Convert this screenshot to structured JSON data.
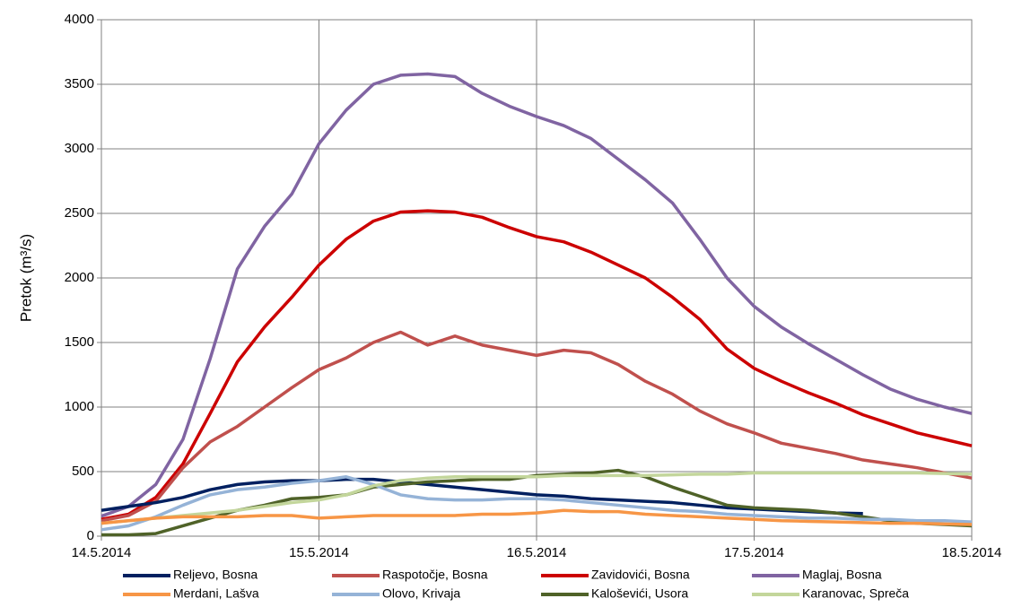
{
  "chart_data": {
    "type": "line",
    "y_label": "Pretok (m³/s)",
    "x": [
      0,
      0.125,
      0.25,
      0.375,
      0.5,
      0.625,
      0.75,
      0.875,
      1,
      1.125,
      1.25,
      1.375,
      1.5,
      1.625,
      1.75,
      1.875,
      2,
      2.125,
      2.25,
      2.375,
      2.5,
      2.625,
      2.75,
      2.875,
      3,
      3.125,
      3.25,
      3.375,
      3.5,
      3.625,
      3.75,
      3.875,
      4
    ],
    "xlim": [
      0,
      4
    ],
    "xticks": [
      {
        "value": 0,
        "label": "14.5.2014"
      },
      {
        "value": 1,
        "label": "15.5.2014"
      },
      {
        "value": 2,
        "label": "16.5.2014"
      },
      {
        "value": 3,
        "label": "17.5.2014"
      },
      {
        "value": 4,
        "label": "18.5.2014"
      }
    ],
    "ylim": [
      0,
      4000
    ],
    "yticks": [
      0,
      500,
      1000,
      1500,
      2000,
      2500,
      3000,
      3500,
      4000
    ],
    "grid": true,
    "series": [
      {
        "name": "Reljevo, Bosna",
        "color": "#002060",
        "values": [
          200,
          230,
          260,
          300,
          360,
          400,
          420,
          430,
          430,
          440,
          440,
          420,
          400,
          380,
          360,
          340,
          320,
          310,
          290,
          280,
          270,
          260,
          240,
          220,
          210,
          200,
          190,
          180,
          175,
          null,
          null,
          null,
          null
        ]
      },
      {
        "name": "Raspotočje, Bosna",
        "color": "#c0504d",
        "values": [
          120,
          160,
          270,
          530,
          730,
          850,
          1000,
          1150,
          1290,
          1380,
          1500,
          1580,
          1480,
          1550,
          1480,
          1440,
          1400,
          1440,
          1420,
          1330,
          1200,
          1100,
          970,
          870,
          800,
          720,
          680,
          640,
          590,
          560,
          530,
          490,
          450
        ]
      },
      {
        "name": "Zavidovići, Bosna",
        "color": "#cc0000",
        "values": [
          130,
          170,
          300,
          560,
          950,
          1350,
          1620,
          1850,
          2100,
          2300,
          2440,
          2510,
          2520,
          2510,
          2470,
          2390,
          2320,
          2280,
          2200,
          2100,
          2000,
          1850,
          1680,
          1450,
          1300,
          1200,
          1110,
          1030,
          940,
          870,
          800,
          750,
          700
        ]
      },
      {
        "name": "Maglaj, Bosna",
        "color": "#8064a2",
        "values": [
          155,
          230,
          400,
          750,
          1375,
          2070,
          2400,
          2650,
          3040,
          3300,
          3500,
          3570,
          3580,
          3560,
          3430,
          3330,
          3250,
          3180,
          3080,
          2920,
          2760,
          2580,
          2300,
          2000,
          1780,
          1620,
          1490,
          1370,
          1250,
          1140,
          1060,
          1000,
          950
        ]
      },
      {
        "name": "Merdani, Lašva",
        "color": "#f79646",
        "values": [
          100,
          120,
          140,
          150,
          150,
          150,
          160,
          160,
          140,
          150,
          160,
          160,
          160,
          160,
          170,
          170,
          180,
          200,
          190,
          190,
          170,
          160,
          150,
          140,
          130,
          120,
          115,
          110,
          105,
          100,
          100,
          95,
          90
        ]
      },
      {
        "name": "Olovo, Krivaja",
        "color": "#95b3d7",
        "values": [
          50,
          80,
          150,
          240,
          320,
          360,
          380,
          410,
          430,
          460,
          400,
          320,
          290,
          280,
          280,
          290,
          290,
          280,
          260,
          240,
          220,
          200,
          190,
          170,
          160,
          150,
          140,
          140,
          130,
          130,
          120,
          120,
          110
        ]
      },
      {
        "name": "Kaloševići, Usora",
        "color": "#4f6228",
        "values": [
          10,
          10,
          20,
          80,
          140,
          200,
          240,
          290,
          300,
          320,
          380,
          400,
          420,
          430,
          440,
          440,
          470,
          480,
          490,
          510,
          460,
          380,
          310,
          240,
          220,
          210,
          200,
          180,
          150,
          120,
          100,
          90,
          80
        ]
      },
      {
        "name": "Karanovac, Spreča",
        "color": "#c3d69b",
        "values": [
          100,
          120,
          140,
          160,
          180,
          200,
          230,
          260,
          280,
          320,
          390,
          430,
          450,
          460,
          460,
          460,
          460,
          470,
          470,
          470,
          470,
          475,
          480,
          480,
          490,
          490,
          490,
          490,
          490,
          490,
          490,
          485,
          480
        ]
      }
    ]
  }
}
